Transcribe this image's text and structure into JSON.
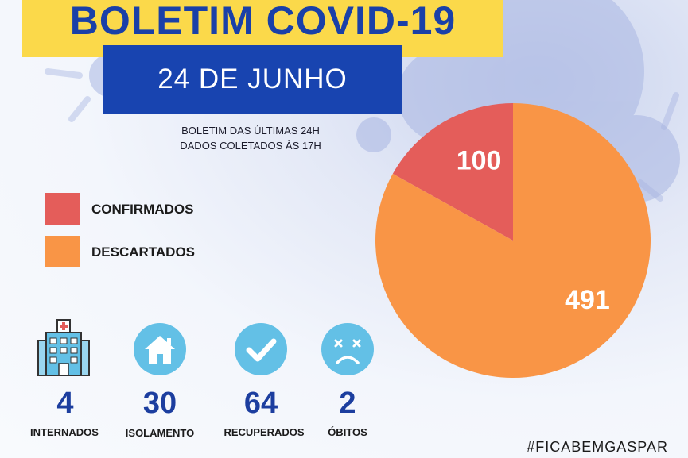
{
  "header": {
    "title": "BOLETIM COVID-19",
    "date": "24 DE JUNHO",
    "subtitle_line1": "BOLETIM DAS ÚLTIMAS 24H",
    "subtitle_line2": "DADOS COLETADOS ÀS  17H"
  },
  "colors": {
    "title_band": "#fbd94a",
    "title_text": "#1a40a8",
    "date_band": "#1844b0",
    "confirmed": "#e45d5a",
    "discarded": "#f99546",
    "icon_circle": "#63c0e6",
    "stat_value": "#1c3e9f"
  },
  "chart_data": {
    "type": "pie",
    "slices": [
      {
        "name": "CONFIRMADOS",
        "value": 100,
        "color": "#e45d5a"
      },
      {
        "name": "DESCARTADOS",
        "value": 491,
        "color": "#f99546"
      }
    ],
    "legend_placement": "left"
  },
  "legend": [
    {
      "label": "CONFIRMADOS",
      "color": "#e45d5a"
    },
    {
      "label": "DESCARTADOS",
      "color": "#f99546"
    }
  ],
  "stats": [
    {
      "icon": "hospital-icon",
      "value": "4",
      "label": "INTERNADOS"
    },
    {
      "icon": "house-icon",
      "value": "30",
      "label": "ISOLAMENTO"
    },
    {
      "icon": "checkmark-icon",
      "value": "64",
      "label": "RECUPERADOS"
    },
    {
      "icon": "sad-face-icon",
      "value": "2",
      "label": "ÓBITOS"
    }
  ],
  "footer": {
    "hashtag": "#FICABEMGASPAR"
  }
}
